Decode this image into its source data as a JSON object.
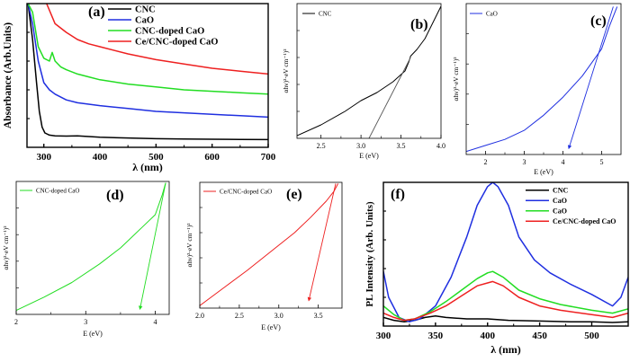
{
  "chart_data": [
    {
      "id": "a",
      "type": "line",
      "panel_label": "(a)",
      "xlabel": "λ (nm)",
      "ylabel": "Absorbance (Arb.Units)",
      "xlim": [
        270,
        700
      ],
      "ylim": [
        0,
        1.0
      ],
      "x_ticks": [
        300,
        400,
        500,
        600,
        700
      ],
      "y_ticks": [],
      "series": [
        {
          "name": "CNC",
          "color": "#000000",
          "x": [
            272,
            280,
            287,
            292,
            297,
            302,
            310,
            320,
            340,
            360,
            380,
            400,
            450,
            500,
            550,
            600,
            650,
            700
          ],
          "y": [
            1.0,
            0.75,
            0.45,
            0.25,
            0.14,
            0.1,
            0.085,
            0.08,
            0.078,
            0.08,
            0.075,
            0.07,
            0.065,
            0.06,
            0.058,
            0.056,
            0.055,
            0.054
          ]
        },
        {
          "name": "CaO",
          "color": "#1f2fe0",
          "x": [
            272,
            280,
            290,
            300,
            310,
            320,
            340,
            360,
            380,
            400,
            450,
            500,
            550,
            600,
            650,
            700
          ],
          "y": [
            1.0,
            0.86,
            0.6,
            0.45,
            0.4,
            0.37,
            0.33,
            0.31,
            0.3,
            0.29,
            0.27,
            0.25,
            0.24,
            0.23,
            0.22,
            0.21
          ]
        },
        {
          "name": "CNC-doped CaO",
          "color": "#22dd22",
          "x": [
            272,
            280,
            290,
            300,
            310,
            315,
            320,
            330,
            340,
            360,
            380,
            400,
            450,
            500,
            550,
            600,
            650,
            700
          ],
          "y": [
            1.0,
            0.94,
            0.7,
            0.62,
            0.6,
            0.66,
            0.6,
            0.56,
            0.54,
            0.51,
            0.49,
            0.47,
            0.44,
            0.42,
            0.4,
            0.39,
            0.38,
            0.37
          ]
        },
        {
          "name": "Ce/CNC-doped CaO",
          "color": "#ee2020",
          "x": [
            305,
            320,
            340,
            360,
            380,
            400,
            450,
            500,
            550,
            600,
            650,
            700
          ],
          "y": [
            1.0,
            0.86,
            0.8,
            0.75,
            0.72,
            0.7,
            0.65,
            0.61,
            0.58,
            0.55,
            0.53,
            0.51
          ]
        }
      ]
    },
    {
      "id": "b",
      "type": "line",
      "panel_label": "(b)",
      "xlabel": "E (eV)",
      "ylabel": "αhν)²·eV cm⁻¹)²",
      "xlim": [
        2.2,
        4.0
      ],
      "ylim": [
        0,
        1.0
      ],
      "x_ticks": [
        2.5,
        3.0,
        3.5,
        4.0
      ],
      "x_tick_labels": [
        "2.5",
        "3.0",
        "3.5",
        "4.0"
      ],
      "y_ticks": [],
      "series": [
        {
          "name": "CNC",
          "color": "#000000",
          "x": [
            2.2,
            2.5,
            2.8,
            3.0,
            3.2,
            3.4,
            3.55,
            3.6,
            3.62,
            3.7,
            3.8,
            3.9,
            4.0
          ],
          "y": [
            0.02,
            0.1,
            0.2,
            0.28,
            0.34,
            0.42,
            0.5,
            0.57,
            0.61,
            0.66,
            0.74,
            0.86,
            0.98
          ]
        },
        {
          "name": "fit",
          "color": "#555555",
          "x": [
            3.1,
            3.62
          ],
          "y": [
            0.0,
            0.6
          ]
        }
      ]
    },
    {
      "id": "c",
      "type": "line",
      "panel_label": "(c)",
      "xlabel": "E (eV)",
      "ylabel": "αhν)²·eV cm⁻¹)²",
      "xlim": [
        1.5,
        5.5
      ],
      "ylim": [
        0,
        1.0
      ],
      "x_ticks": [
        2,
        3,
        4,
        5
      ],
      "x_tick_labels": [
        "2",
        "3",
        "4",
        "5"
      ],
      "y_ticks": [],
      "series": [
        {
          "name": "CaO",
          "color": "#1f2fe0",
          "x": [
            1.5,
            2.0,
            2.5,
            3.0,
            3.5,
            4.0,
            4.5,
            5.0,
            5.2,
            5.4
          ],
          "y": [
            0.02,
            0.06,
            0.1,
            0.16,
            0.26,
            0.38,
            0.52,
            0.7,
            0.85,
            0.98
          ]
        },
        {
          "name": "fit",
          "color": "#1f2fe0",
          "x": [
            5.3,
            4.15
          ],
          "y": [
            0.98,
            0.04
          ],
          "arrow": true
        }
      ]
    },
    {
      "id": "d",
      "type": "line",
      "panel_label": "(d)",
      "xlabel": "E (eV)",
      "ylabel": "αhν)²·eV cm⁻¹)²",
      "xlim": [
        2.0,
        4.2
      ],
      "ylim": [
        0,
        1.0
      ],
      "x_ticks": [
        2,
        3,
        4
      ],
      "x_tick_labels": [
        "2",
        "3",
        "4"
      ],
      "y_ticks": [],
      "series": [
        {
          "name": "CNC-doped CaO",
          "color": "#22dd22",
          "x": [
            2.0,
            2.4,
            2.8,
            3.2,
            3.5,
            3.8,
            4.0,
            4.1,
            4.15
          ],
          "y": [
            0.03,
            0.13,
            0.24,
            0.38,
            0.5,
            0.65,
            0.75,
            0.9,
            0.99
          ]
        },
        {
          "name": "fit",
          "color": "#22dd22",
          "x": [
            4.15,
            3.78
          ],
          "y": [
            0.99,
            0.04
          ],
          "arrow": true
        }
      ]
    },
    {
      "id": "e",
      "type": "line",
      "panel_label": "(e)",
      "xlabel": "E (eV)",
      "ylabel": "αhν)²·eV cm⁻¹)²",
      "xlim": [
        2.0,
        3.8
      ],
      "ylim": [
        0,
        1.0
      ],
      "x_ticks": [
        2.0,
        2.5,
        3.0,
        3.5
      ],
      "x_tick_labels": [
        "2.0",
        "2.5",
        "3.0",
        "3.5"
      ],
      "y_ticks": [],
      "series": [
        {
          "name": "Ce/CNC-doped CaO",
          "color": "#ee2020",
          "x": [
            2.0,
            2.3,
            2.6,
            2.9,
            3.2,
            3.4,
            3.6,
            3.7,
            3.75
          ],
          "y": [
            0.02,
            0.16,
            0.3,
            0.45,
            0.6,
            0.72,
            0.85,
            0.93,
            0.99
          ]
        },
        {
          "name": "fit",
          "color": "#ee2020",
          "x": [
            3.72,
            3.38
          ],
          "y": [
            0.99,
            0.06
          ],
          "arrow": true
        }
      ]
    },
    {
      "id": "f",
      "type": "line",
      "panel_label": "(f)",
      "xlabel": "λ (nm)",
      "ylabel": "PL Intensity (Arb. Units)",
      "xlim": [
        300,
        535
      ],
      "ylim": [
        0,
        1.0
      ],
      "x_ticks": [
        300,
        350,
        400,
        450,
        500
      ],
      "y_ticks": [],
      "series": [
        {
          "name": "CNC",
          "color": "#000000",
          "x": [
            300,
            310,
            320,
            330,
            340,
            350,
            360,
            380,
            400,
            420,
            450,
            480,
            500,
            520,
            535
          ],
          "y": [
            0.06,
            0.04,
            0.03,
            0.04,
            0.06,
            0.07,
            0.06,
            0.05,
            0.05,
            0.04,
            0.035,
            0.03,
            0.03,
            0.025,
            0.03
          ]
        },
        {
          "name": "CaO",
          "color": "#1f2fe0",
          "x": [
            300,
            305,
            315,
            325,
            335,
            350,
            365,
            380,
            390,
            400,
            405,
            410,
            420,
            430,
            445,
            460,
            480,
            500,
            520,
            528,
            535
          ],
          "y": [
            0.38,
            0.2,
            0.06,
            0.03,
            0.05,
            0.14,
            0.34,
            0.62,
            0.84,
            0.97,
            1.0,
            0.97,
            0.84,
            0.62,
            0.46,
            0.37,
            0.29,
            0.22,
            0.14,
            0.2,
            0.34
          ]
        },
        {
          "name": "CaO",
          "color": "#22dd22",
          "x": [
            300,
            310,
            320,
            330,
            345,
            360,
            375,
            390,
            400,
            405,
            415,
            430,
            450,
            470,
            500,
            520,
            535
          ],
          "y": [
            0.14,
            0.08,
            0.04,
            0.05,
            0.1,
            0.17,
            0.25,
            0.33,
            0.37,
            0.38,
            0.34,
            0.25,
            0.19,
            0.15,
            0.11,
            0.09,
            0.12
          ]
        },
        {
          "name": "Ce/CNC-doped CaO",
          "color": "#ee2020",
          "x": [
            300,
            310,
            320,
            330,
            345,
            360,
            375,
            390,
            400,
            405,
            415,
            430,
            450,
            470,
            500,
            520,
            535
          ],
          "y": [
            0.09,
            0.06,
            0.04,
            0.05,
            0.09,
            0.14,
            0.21,
            0.28,
            0.3,
            0.31,
            0.28,
            0.2,
            0.14,
            0.11,
            0.08,
            0.06,
            0.09
          ]
        }
      ]
    }
  ]
}
